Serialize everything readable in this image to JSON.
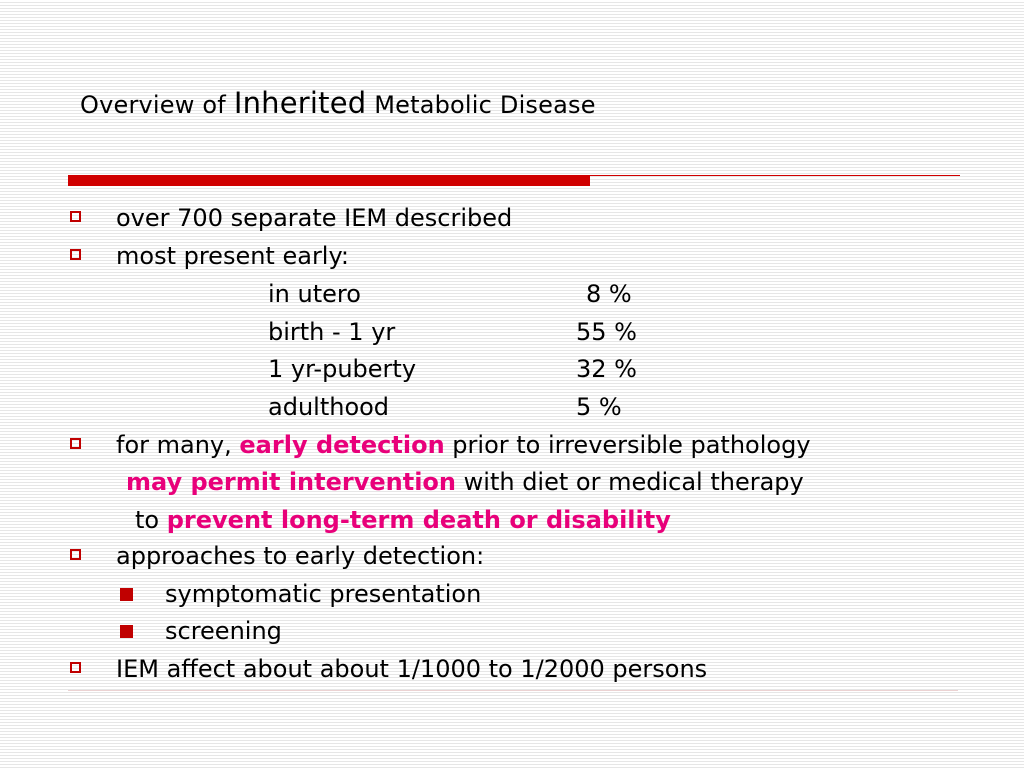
{
  "title": {
    "pre": "Overview of",
    "big": "Inherited",
    "post": "Metabolic Disease"
  },
  "bullets": {
    "b1": "over 700 separate IEM described",
    "b2": "most present early:",
    "stats": [
      {
        "label": "in utero",
        "value": "8 %"
      },
      {
        "label": "birth - 1 yr",
        "value": "55 %"
      },
      {
        "label": "1 yr-puberty",
        "value": "32 %"
      },
      {
        "label": "adulthood",
        "value": "5 %"
      }
    ],
    "b3": {
      "a": "for many,",
      "b": "early detection",
      "c": "prior to irreversible pathology",
      "d": "may permit intervention",
      "e": "with diet or medical therapy",
      "f": "to",
      "g": "prevent long-term death or disability"
    },
    "b4": "approaches to early detection:",
    "sub": [
      "symptomatic presentation",
      "screening"
    ],
    "b5": "IEM affect about about 1/1000 to 1/2000 persons"
  },
  "colors": {
    "accent_red": "#d00000",
    "highlight_pink": "#e8007a"
  }
}
